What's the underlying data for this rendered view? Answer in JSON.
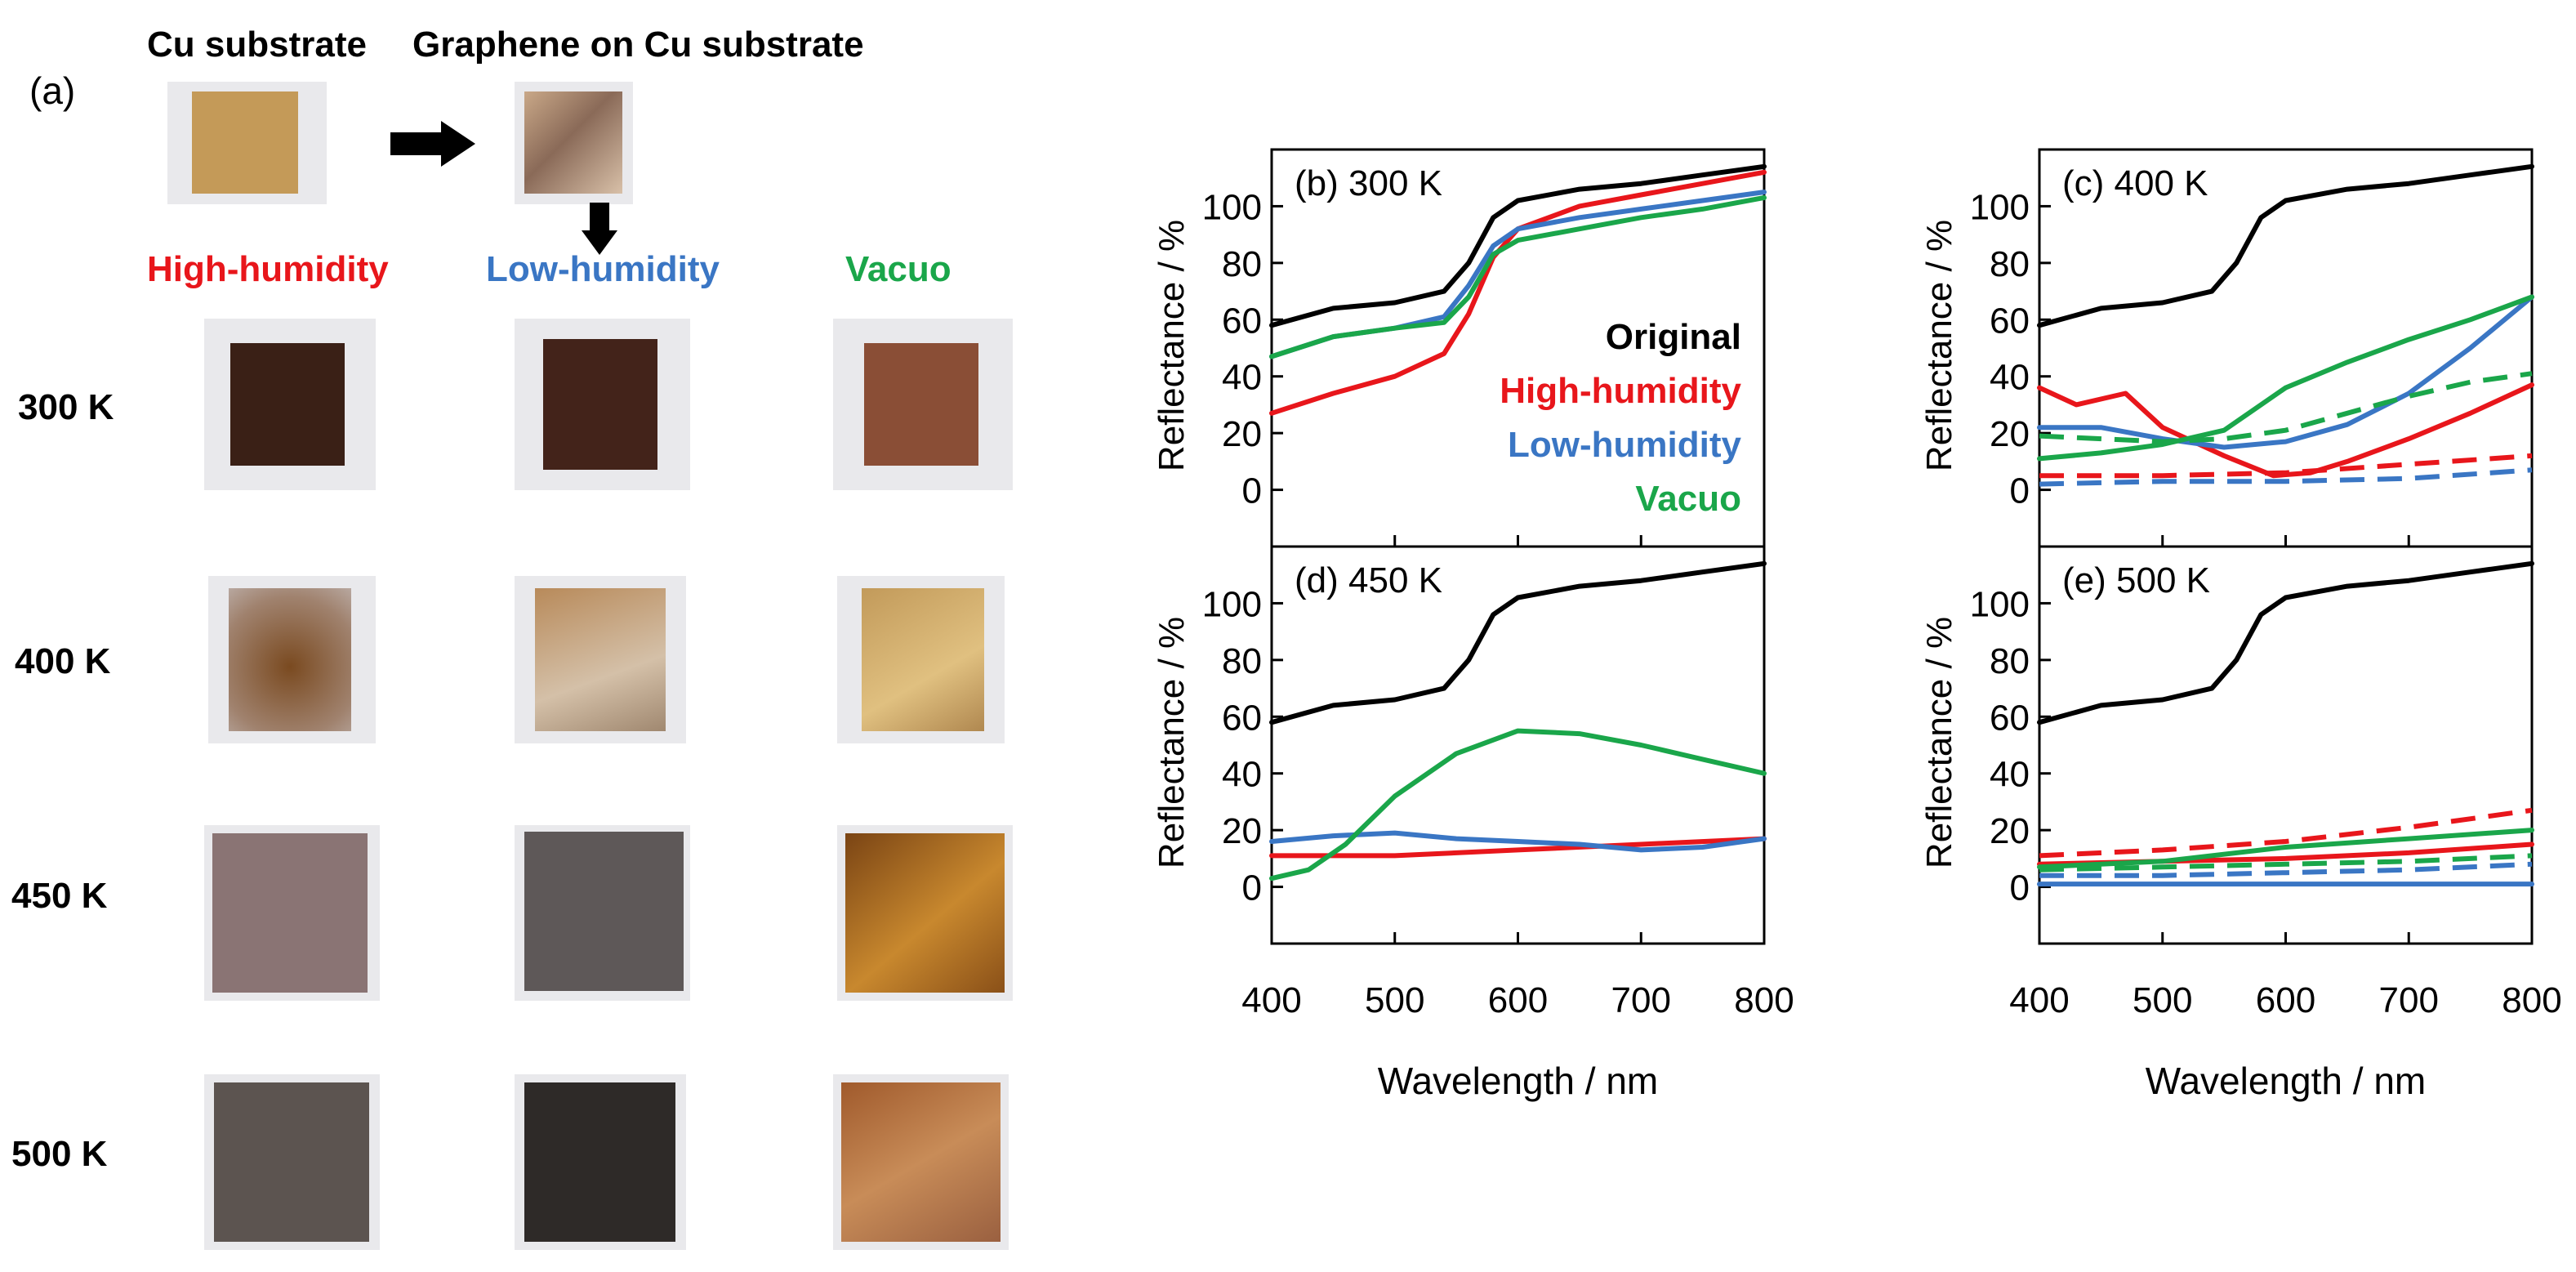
{
  "panel_a": {
    "label": "(a)",
    "top_titles": [
      "Cu substrate",
      "Graphene on Cu substrate"
    ],
    "columns": [
      {
        "label": "High-humidity",
        "color": "#e8161b"
      },
      {
        "label": "Low-humidity",
        "color": "#3a76c4"
      },
      {
        "label": "Vacuo",
        "color": "#1aa64a"
      }
    ],
    "rows": [
      "300 K",
      "400 K",
      "450 K",
      "500 K"
    ]
  },
  "legend": [
    {
      "label": "Original",
      "color": "#000000"
    },
    {
      "label": "High-humidity",
      "color": "#e8161b"
    },
    {
      "label": "Low-humidity",
      "color": "#3a76c4"
    },
    {
      "label": "Vacuo",
      "color": "#1aa64a"
    }
  ],
  "chart_data": [
    {
      "type": "line",
      "panel": "b",
      "title": "(b) 300 K",
      "xlabel": "Wavelength / nm",
      "ylabel": "Reflectance / %",
      "xlim": [
        400,
        800
      ],
      "ylim": [
        -20,
        120
      ],
      "xticks": [
        400,
        500,
        600,
        700,
        800
      ],
      "yticks": [
        0,
        20,
        40,
        60,
        80,
        100
      ],
      "series": [
        {
          "name": "Original",
          "color": "#000000",
          "dashed": false,
          "x": [
            400,
            450,
            500,
            540,
            560,
            580,
            600,
            650,
            700,
            750,
            800
          ],
          "y": [
            58,
            64,
            66,
            70,
            80,
            96,
            102,
            106,
            108,
            111,
            114
          ]
        },
        {
          "name": "High-humidity",
          "color": "#e8161b",
          "dashed": false,
          "x": [
            400,
            450,
            500,
            540,
            560,
            580,
            600,
            650,
            700,
            750,
            800
          ],
          "y": [
            27,
            34,
            40,
            48,
            62,
            82,
            92,
            100,
            104,
            108,
            112
          ]
        },
        {
          "name": "Low-humidity",
          "color": "#3a76c4",
          "dashed": false,
          "x": [
            400,
            450,
            500,
            540,
            560,
            580,
            600,
            650,
            700,
            750,
            800
          ],
          "y": [
            47,
            54,
            57,
            61,
            72,
            86,
            92,
            96,
            99,
            102,
            105
          ]
        },
        {
          "name": "Vacuo",
          "color": "#1aa64a",
          "dashed": false,
          "x": [
            400,
            450,
            500,
            540,
            560,
            580,
            600,
            650,
            700,
            750,
            800
          ],
          "y": [
            47,
            54,
            57,
            59,
            68,
            83,
            88,
            92,
            96,
            99,
            103
          ]
        }
      ]
    },
    {
      "type": "line",
      "panel": "c",
      "title": "(c) 400 K",
      "xlabel": "Wavelength / nm",
      "ylabel": "Reflectance / %",
      "xlim": [
        400,
        800
      ],
      "ylim": [
        -20,
        120
      ],
      "xticks": [
        400,
        500,
        600,
        700,
        800
      ],
      "yticks": [
        0,
        20,
        40,
        60,
        80,
        100
      ],
      "series": [
        {
          "name": "Original",
          "color": "#000000",
          "dashed": false,
          "x": [
            400,
            450,
            500,
            540,
            560,
            580,
            600,
            650,
            700,
            750,
            800
          ],
          "y": [
            58,
            64,
            66,
            70,
            80,
            96,
            102,
            106,
            108,
            111,
            114
          ]
        },
        {
          "name": "High-humidity",
          "color": "#e8161b",
          "dashed": false,
          "x": [
            400,
            430,
            470,
            500,
            550,
            590,
            620,
            650,
            700,
            750,
            800
          ],
          "y": [
            36,
            30,
            34,
            22,
            12,
            5,
            6,
            10,
            18,
            27,
            37
          ]
        },
        {
          "name": "Low-humidity",
          "color": "#3a76c4",
          "dashed": false,
          "x": [
            400,
            450,
            500,
            550,
            600,
            650,
            700,
            750,
            800
          ],
          "y": [
            22,
            22,
            18,
            15,
            17,
            23,
            34,
            50,
            68
          ]
        },
        {
          "name": "Vacuo",
          "color": "#1aa64a",
          "dashed": false,
          "x": [
            400,
            450,
            500,
            550,
            600,
            650,
            700,
            750,
            800
          ],
          "y": [
            11,
            13,
            16,
            21,
            36,
            45,
            53,
            60,
            68
          ]
        },
        {
          "name": "High-humidity (dashed)",
          "color": "#e8161b",
          "dashed": true,
          "x": [
            400,
            500,
            600,
            700,
            800
          ],
          "y": [
            5,
            5,
            6,
            9,
            12
          ]
        },
        {
          "name": "Low-humidity (dashed)",
          "color": "#3a76c4",
          "dashed": true,
          "x": [
            400,
            500,
            600,
            700,
            800
          ],
          "y": [
            2,
            3,
            3,
            4,
            7
          ]
        },
        {
          "name": "Vacuo (dashed)",
          "color": "#1aa64a",
          "dashed": true,
          "x": [
            400,
            450,
            500,
            550,
            600,
            650,
            700,
            750,
            800
          ],
          "y": [
            19,
            18,
            17,
            18,
            21,
            27,
            33,
            38,
            41
          ]
        }
      ]
    },
    {
      "type": "line",
      "panel": "d",
      "title": "(d) 450 K",
      "xlabel": "Wavelength / nm",
      "ylabel": "Reflectance / %",
      "xlim": [
        400,
        800
      ],
      "ylim": [
        -20,
        120
      ],
      "xticks": [
        400,
        500,
        600,
        700,
        800
      ],
      "yticks": [
        0,
        20,
        40,
        60,
        80,
        100
      ],
      "series": [
        {
          "name": "Original",
          "color": "#000000",
          "dashed": false,
          "x": [
            400,
            450,
            500,
            540,
            560,
            580,
            600,
            650,
            700,
            750,
            800
          ],
          "y": [
            58,
            64,
            66,
            70,
            80,
            96,
            102,
            106,
            108,
            111,
            114
          ]
        },
        {
          "name": "High-humidity",
          "color": "#e8161b",
          "dashed": false,
          "x": [
            400,
            500,
            600,
            700,
            800
          ],
          "y": [
            11,
            11,
            13,
            15,
            17
          ]
        },
        {
          "name": "Low-humidity",
          "color": "#3a76c4",
          "dashed": false,
          "x": [
            400,
            450,
            500,
            550,
            600,
            650,
            700,
            750,
            800
          ],
          "y": [
            16,
            18,
            19,
            17,
            16,
            15,
            13,
            14,
            17
          ]
        },
        {
          "name": "Vacuo",
          "color": "#1aa64a",
          "dashed": false,
          "x": [
            400,
            430,
            460,
            500,
            550,
            600,
            650,
            700,
            750,
            800
          ],
          "y": [
            3,
            6,
            15,
            32,
            47,
            55,
            54,
            50,
            45,
            40
          ]
        }
      ]
    },
    {
      "type": "line",
      "panel": "e",
      "title": "(e) 500 K",
      "xlabel": "Wavelength / nm",
      "ylabel": "Reflectance / %",
      "xlim": [
        400,
        800
      ],
      "ylim": [
        -20,
        120
      ],
      "xticks": [
        400,
        500,
        600,
        700,
        800
      ],
      "yticks": [
        0,
        20,
        40,
        60,
        80,
        100
      ],
      "series": [
        {
          "name": "Original",
          "color": "#000000",
          "dashed": false,
          "x": [
            400,
            450,
            500,
            540,
            560,
            580,
            600,
            650,
            700,
            750,
            800
          ],
          "y": [
            58,
            64,
            66,
            70,
            80,
            96,
            102,
            106,
            108,
            111,
            114
          ]
        },
        {
          "name": "High-humidity",
          "color": "#e8161b",
          "dashed": false,
          "x": [
            400,
            500,
            600,
            700,
            800
          ],
          "y": [
            8,
            9,
            10,
            12,
            15
          ]
        },
        {
          "name": "Low-humidity",
          "color": "#3a76c4",
          "dashed": false,
          "x": [
            400,
            500,
            600,
            700,
            800
          ],
          "y": [
            1,
            1,
            1,
            1,
            1
          ]
        },
        {
          "name": "Vacuo",
          "color": "#1aa64a",
          "dashed": false,
          "x": [
            400,
            500,
            600,
            700,
            800
          ],
          "y": [
            7,
            9,
            14,
            17,
            20
          ]
        },
        {
          "name": "High-humidity (dashed)",
          "color": "#e8161b",
          "dashed": true,
          "x": [
            400,
            500,
            600,
            700,
            800
          ],
          "y": [
            11,
            13,
            16,
            21,
            27
          ]
        },
        {
          "name": "Low-humidity (dashed)",
          "color": "#3a76c4",
          "dashed": true,
          "x": [
            400,
            500,
            600,
            700,
            800
          ],
          "y": [
            4,
            4,
            5,
            6,
            8
          ]
        },
        {
          "name": "Vacuo (dashed)",
          "color": "#1aa64a",
          "dashed": true,
          "x": [
            400,
            500,
            600,
            700,
            800
          ],
          "y": [
            6,
            7,
            8,
            9,
            11
          ]
        }
      ]
    }
  ]
}
